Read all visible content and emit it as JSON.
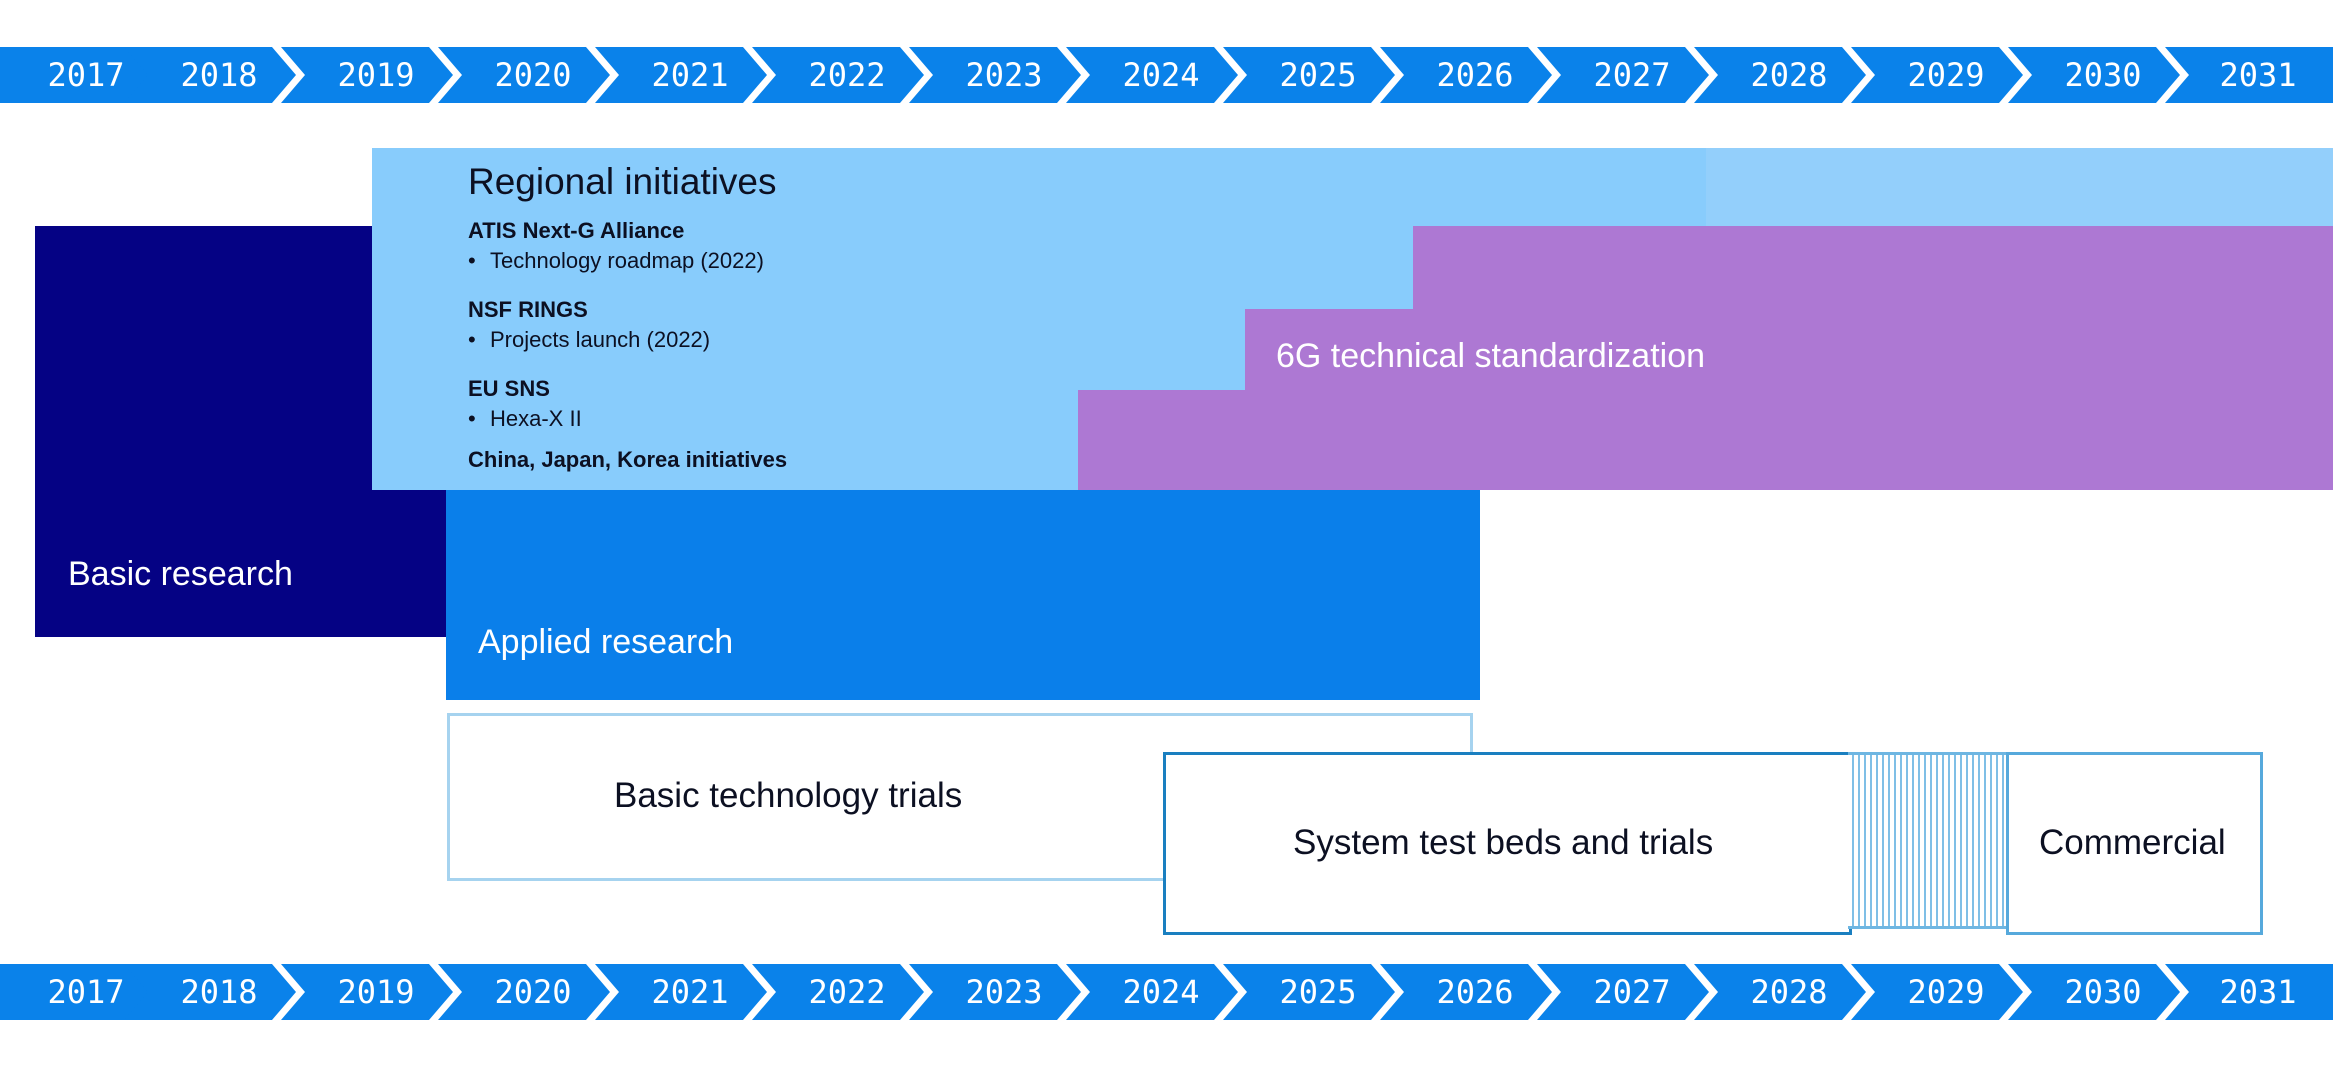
{
  "timeline": {
    "years": [
      "2017",
      "2018",
      "2019",
      "2020",
      "2021",
      "2022",
      "2023",
      "2024",
      "2025",
      "2026",
      "2027",
      "2028",
      "2029",
      "2030",
      "2031"
    ]
  },
  "phases": {
    "basic_research": "Basic research",
    "applied_research": "Applied research",
    "standardization": "6G technical standardization",
    "basic_trials": "Basic technology trials",
    "system_trials": "System test beds and trials",
    "commercial": "Commercial"
  },
  "regional": {
    "title": "Regional initiatives",
    "groups": [
      {
        "name": "ATIS Next-G Alliance",
        "item": "Technology roadmap (2022)"
      },
      {
        "name": "NSF RINGS",
        "item": "Projects launch (2022)"
      },
      {
        "name": "EU SNS",
        "item": "Hexa-X II"
      }
    ],
    "last": "China, Japan, Korea initiatives"
  },
  "colors": {
    "chevron": "#0a82ea",
    "basic_research": "#050284",
    "regional": "#88ccfc",
    "applied_research": "#0a7fea",
    "standardization": "#ad78d3"
  }
}
